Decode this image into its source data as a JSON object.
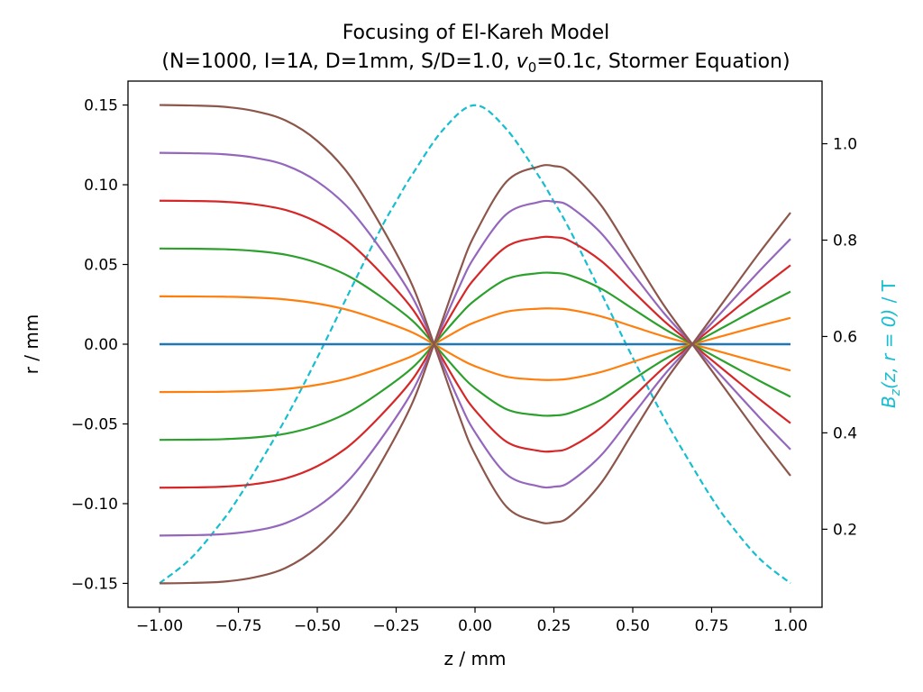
{
  "chart_data": {
    "type": "line",
    "title_line1": "Focusing of El-Kareh Model",
    "title_line2_pre": "(N=1000, I=1A, D=1mm, S/D=1.0, ",
    "title_line2_v": "v",
    "title_line2_sub": "0",
    "title_line2_post": "=0.1c, Stormer Equation)",
    "xlabel": "z / mm",
    "ylabel": "r / mm",
    "y2label_B": "B",
    "y2label_sub": "z",
    "y2label_args": "(z, r = 0)",
    "y2label_unit": " / T",
    "xlim": [
      -1.1,
      1.1
    ],
    "ylim": [
      -0.165,
      0.165
    ],
    "y2lim": [
      0.038,
      1.13
    ],
    "x_ticks": [
      "−1.00",
      "−0.75",
      "−0.50",
      "−0.25",
      "0.00",
      "0.25",
      "0.50",
      "0.75",
      "1.00"
    ],
    "x_tick_values": [
      -1.0,
      -0.75,
      -0.5,
      -0.25,
      0.0,
      0.25,
      0.5,
      0.75,
      1.0
    ],
    "y_ticks": [
      "0.15",
      "0.10",
      "0.05",
      "0.00",
      "−0.05",
      "−0.10",
      "−0.15"
    ],
    "y_tick_values": [
      0.15,
      0.1,
      0.05,
      0.0,
      -0.05,
      -0.1,
      -0.15
    ],
    "y2_ticks": [
      "1.0",
      "0.8",
      "0.6",
      "0.4",
      "0.2"
    ],
    "y2_tick_values": [
      1.0,
      0.8,
      0.6,
      0.4,
      0.2
    ],
    "trajectory_x": [
      -1.0,
      -0.9,
      -0.8,
      -0.7,
      -0.6,
      -0.5,
      -0.4,
      -0.3,
      -0.2,
      -0.13,
      -0.05,
      0.0,
      0.1,
      0.2,
      0.25,
      0.3,
      0.4,
      0.5,
      0.6,
      0.7,
      0.8,
      0.9,
      1.0
    ],
    "trajectory_shape": [
      1.0,
      0.998,
      0.993,
      0.975,
      0.935,
      0.85,
      0.71,
      0.5,
      0.25,
      0.0,
      -0.3,
      -0.46,
      -0.68,
      -0.742,
      -0.745,
      -0.72,
      -0.58,
      -0.37,
      -0.16,
      0.02,
      0.2,
      0.38,
      0.55
    ],
    "series": [
      {
        "r0": 0.0,
        "color": "#1f77b4"
      },
      {
        "r0": 0.03,
        "color": "#ff7f0e"
      },
      {
        "r0": -0.03,
        "color": "#ff7f0e"
      },
      {
        "r0": 0.06,
        "color": "#2ca02c"
      },
      {
        "r0": -0.06,
        "color": "#2ca02c"
      },
      {
        "r0": 0.09,
        "color": "#d62728"
      },
      {
        "r0": -0.09,
        "color": "#d62728"
      },
      {
        "r0": 0.12,
        "color": "#9467bd"
      },
      {
        "r0": -0.12,
        "color": "#9467bd"
      },
      {
        "r0": 0.15,
        "color": "#8c564b"
      },
      {
        "r0": -0.15,
        "color": "#8c564b"
      }
    ],
    "field_series": {
      "color": "#17becf",
      "style": "dashed",
      "x": [
        -1.0,
        -0.9,
        -0.8,
        -0.75,
        -0.7,
        -0.6,
        -0.5,
        -0.4,
        -0.3,
        -0.25,
        -0.2,
        -0.1,
        0.0,
        0.1,
        0.2,
        0.25,
        0.3,
        0.4,
        0.5,
        0.6,
        0.7,
        0.75,
        0.8,
        0.9,
        1.0
      ],
      "values": [
        0.088,
        0.14,
        0.218,
        0.265,
        0.318,
        0.43,
        0.556,
        0.69,
        0.822,
        0.88,
        0.935,
        1.03,
        1.08,
        1.03,
        0.935,
        0.88,
        0.822,
        0.69,
        0.556,
        0.43,
        0.318,
        0.265,
        0.218,
        0.14,
        0.088
      ]
    },
    "grid": false,
    "legend": "none"
  }
}
